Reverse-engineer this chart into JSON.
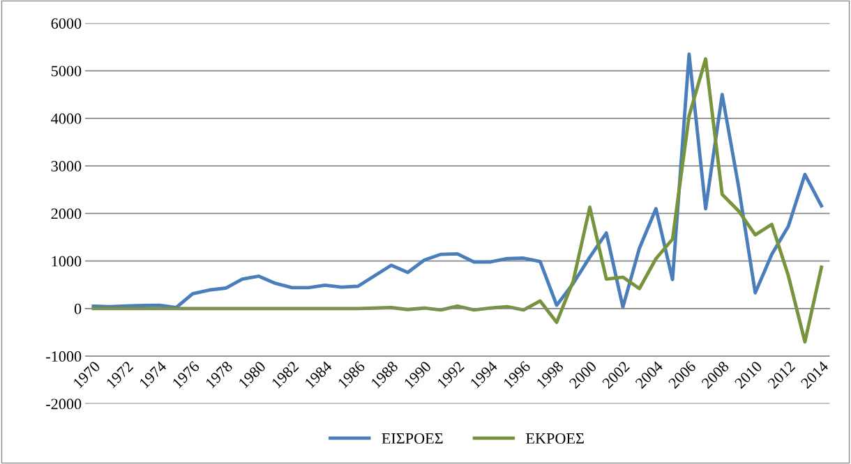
{
  "chart_data": {
    "type": "line",
    "categories": [
      "1970",
      null,
      "1972",
      null,
      "1974",
      null,
      "1976",
      null,
      "1978",
      null,
      "1980",
      null,
      "1982",
      null,
      "1984",
      null,
      "1986",
      null,
      "1988",
      null,
      "1990",
      null,
      "1992",
      null,
      "1994",
      null,
      "1996",
      null,
      "1998",
      null,
      "2000",
      null,
      "2002",
      null,
      "2004",
      null,
      "2006",
      null,
      "2008",
      null,
      "2010",
      null,
      "2012",
      null,
      "2014"
    ],
    "series": [
      {
        "name": "ΕΙΣΡΟΕΣ",
        "color": "#4a7ebb",
        "values": [
          50,
          40,
          55,
          65,
          70,
          20,
          310,
          390,
          430,
          620,
          680,
          530,
          440,
          440,
          490,
          450,
          470,
          690,
          910,
          760,
          1020,
          1140,
          1150,
          980,
          980,
          1050,
          1060,
          990,
          70,
          530,
          1080,
          1590,
          30,
          1270,
          2100,
          610,
          5350,
          2100,
          4500,
          2550,
          330,
          1140,
          1730,
          2820,
          2160
        ]
      },
      {
        "name": "ΕΚΡΟΕΣ",
        "color": "#77933c",
        "values": [
          0,
          0,
          0,
          0,
          0,
          0,
          0,
          0,
          0,
          0,
          0,
          0,
          0,
          0,
          0,
          0,
          0,
          10,
          20,
          -20,
          10,
          -30,
          50,
          -30,
          10,
          40,
          -30,
          160,
          -290,
          580,
          2130,
          620,
          660,
          420,
          1050,
          1460,
          4050,
          5250,
          2400,
          2050,
          1550,
          1770,
          690,
          -700,
          870
        ]
      }
    ],
    "ylim": [
      -2000,
      6000
    ],
    "yticks": [
      {
        "value": -2000,
        "label": "-2000"
      },
      {
        "value": -1000,
        "label": "-1000"
      },
      0,
      1000,
      2000,
      3000,
      4000,
      5000,
      6000
    ],
    "grid": "y",
    "legend": "bottom",
    "marker": "none",
    "line_style": "solid"
  }
}
